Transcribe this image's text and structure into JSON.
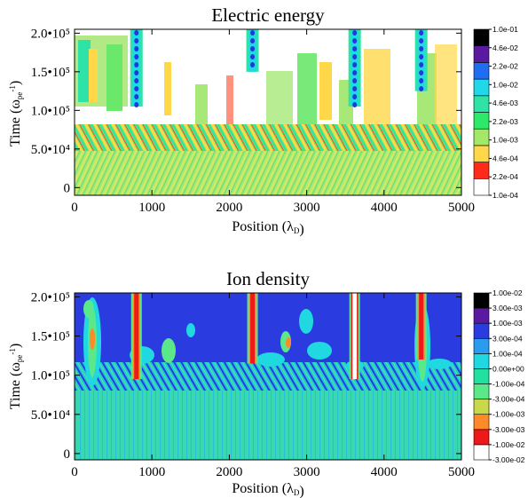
{
  "chart_data": [
    {
      "type": "heatmap",
      "title": "Electric energy",
      "xlabel": "Position (λ_D)",
      "ylabel": "Time (ω_pe^-1)",
      "xlim": [
        0,
        5000
      ],
      "ylim": [
        -10000,
        205000
      ],
      "x_ticks": [
        {
          "value": 0,
          "label": "0"
        },
        {
          "value": 1000,
          "label": "1000"
        },
        {
          "value": 2000,
          "label": "2000"
        },
        {
          "value": 3000,
          "label": "3000"
        },
        {
          "value": 4000,
          "label": "4000"
        },
        {
          "value": 5000,
          "label": "5000"
        }
      ],
      "y_ticks": [
        {
          "value": 0,
          "label": "0"
        },
        {
          "value": 50000,
          "label": "5.0•10⁴"
        },
        {
          "value": 100000,
          "label": "1.0•10⁵"
        },
        {
          "value": 150000,
          "label": "1.5•10⁵"
        },
        {
          "value": 200000,
          "label": "2.0•10⁵"
        }
      ],
      "colorbar": {
        "scale": "log",
        "levels": [
          "1.0e-04",
          "2.2e-04",
          "4.6e-04",
          "1.0e-03",
          "2.2e-03",
          "4.6e-03",
          "1.0e-02",
          "2.2e-02",
          "4.6e-02",
          "1.0e-01"
        ],
        "colors": [
          "#ffffff",
          "#ff2b1a",
          "#ffd84a",
          "#a4e86a",
          "#2ee86a",
          "#2fe3a8",
          "#20d8e8",
          "#1f6df0",
          "#5a1aa0",
          "#000000"
        ]
      },
      "features": {
        "background_level_below_t_85000": "1.0e-03",
        "columns": [
          {
            "x": 800,
            "t_start": 105000,
            "peak": "4.6e-02"
          },
          {
            "x": 2300,
            "t_start": 150000,
            "peak": "2.2e-02"
          },
          {
            "x": 3620,
            "t_start": 105000,
            "peak": "4.6e-02"
          },
          {
            "x": 4480,
            "t_start": 125000,
            "peak": "1.0e-02"
          }
        ]
      }
    },
    {
      "type": "heatmap",
      "title": "Ion density",
      "xlabel": "Position (λ_D)",
      "ylabel": "Time (ω_pe^-1)",
      "xlim": [
        0,
        5000
      ],
      "ylim": [
        -8000,
        205000
      ],
      "x_ticks": [
        {
          "value": 0,
          "label": "0"
        },
        {
          "value": 1000,
          "label": "1000"
        },
        {
          "value": 2000,
          "label": "2000"
        },
        {
          "value": 3000,
          "label": "3000"
        },
        {
          "value": 4000,
          "label": "4000"
        },
        {
          "value": 5000,
          "label": "5000"
        }
      ],
      "y_ticks": [
        {
          "value": 0,
          "label": "0"
        },
        {
          "value": 50000,
          "label": "5.0•10⁴"
        },
        {
          "value": 100000,
          "label": "1.0•10⁵"
        },
        {
          "value": 150000,
          "label": "1.5•10⁵"
        },
        {
          "value": 200000,
          "label": "2.0•10⁵"
        }
      ],
      "colorbar": {
        "scale": "symmetric",
        "levels": [
          "-3.00e-02",
          "-1.00e-02",
          "-3.00e-03",
          "-1.00e-03",
          "-3.00e-04",
          "-1.00e-04",
          "0.00e+00",
          "1.00e-04",
          "3.00e-04",
          "1.00e-03",
          "3.00e-03",
          "1.00e-02"
        ],
        "colors": [
          "#ffffff",
          "#ee1a1a",
          "#ff8a2a",
          "#c8d84a",
          "#5ae88a",
          "#22e0a0",
          "#20d8e0",
          "#2a9cf0",
          "#2a3ce0",
          "#5a1aa0",
          "#000000"
        ]
      },
      "features": {
        "background_level_after_t_100000": "3.00e-04",
        "columns": [
          {
            "x": 800,
            "t_start": 95000,
            "peak": "-1.00e-02"
          },
          {
            "x": 2300,
            "t_start": 115000,
            "peak": "-1.00e-02"
          },
          {
            "x": 3620,
            "t_start": 95000,
            "peak": "-3.00e-02"
          },
          {
            "x": 4480,
            "t_start": 120000,
            "peak": "-1.00e-02"
          }
        ]
      }
    }
  ]
}
